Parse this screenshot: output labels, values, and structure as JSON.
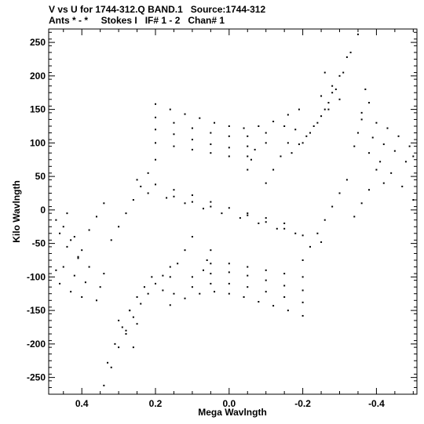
{
  "header": {
    "line1": "V vs U for 1744-312.Q BAND.1   Source:1744-312",
    "line2": "Ants * - *     Stokes I   IF# 1 - 2   Chan# 1"
  },
  "chart_data": {
    "type": "scatter",
    "title": "V vs U for 1744-312.Q BAND.1   Source:1744-312",
    "subtitle": "Ants * - *     Stokes I   IF# 1 - 2   Chan# 1",
    "xlabel": "Mega Wavlngth",
    "ylabel": "Kilo Wavlngth",
    "xlim": [
      0.49,
      -0.51
    ],
    "ylim": [
      -275,
      270
    ],
    "x_reversed": true,
    "xticks": [
      0.4,
      0.2,
      0.0,
      -0.2,
      -0.4
    ],
    "xtick_labels": [
      "0.4",
      "0.2",
      "0.0",
      "-0.2",
      "-0.4"
    ],
    "yticks": [
      250,
      200,
      150,
      100,
      50,
      0,
      -50,
      -100,
      -150,
      -200,
      -250
    ],
    "ytick_labels": [
      "250",
      "200",
      "150",
      "100",
      "50",
      "0",
      "-50",
      "-100",
      "-150",
      "-200",
      "-250"
    ],
    "grid": false,
    "marker_color": "#000000",
    "series": [
      {
        "points": [
          [
            -0.35,
            262
          ],
          [
            -0.33,
            235
          ],
          [
            -0.31,
            205
          ],
          [
            -0.29,
            180
          ],
          [
            -0.27,
            160
          ],
          [
            -0.25,
            140
          ],
          [
            -0.23,
            125
          ],
          [
            -0.21,
            110
          ],
          [
            -0.19,
            98
          ],
          [
            -0.17,
            85
          ],
          [
            -0.32,
            228
          ],
          [
            -0.3,
            200
          ],
          [
            -0.28,
            175
          ],
          [
            -0.26,
            150
          ],
          [
            -0.24,
            130
          ],
          [
            -0.22,
            115
          ],
          [
            -0.2,
            100
          ],
          [
            0.34,
            -262
          ],
          [
            0.32,
            -235
          ],
          [
            0.3,
            -205
          ],
          [
            0.28,
            -180
          ],
          [
            0.26,
            -160
          ],
          [
            0.24,
            -140
          ],
          [
            0.22,
            -125
          ],
          [
            0.2,
            -110
          ],
          [
            0.18,
            -98
          ],
          [
            0.16,
            -85
          ],
          [
            0.33,
            -228
          ],
          [
            0.31,
            -200
          ],
          [
            0.29,
            -175
          ],
          [
            0.27,
            -150
          ],
          [
            0.25,
            -130
          ],
          [
            0.23,
            -115
          ],
          [
            0.21,
            -100
          ],
          [
            0.2,
            158
          ],
          [
            0.16,
            150
          ],
          [
            0.12,
            143
          ],
          [
            0.08,
            137
          ],
          [
            0.04,
            130
          ],
          [
            0.0,
            125
          ],
          [
            -0.04,
            122
          ],
          [
            -0.08,
            125
          ],
          [
            -0.12,
            132
          ],
          [
            -0.16,
            142
          ],
          [
            -0.19,
            150
          ],
          [
            0.2,
            138
          ],
          [
            0.15,
            130
          ],
          [
            0.1,
            122
          ],
          [
            0.05,
            115
          ],
          [
            0.0,
            110
          ],
          [
            -0.05,
            110
          ],
          [
            -0.1,
            115
          ],
          [
            -0.15,
            125
          ],
          [
            0.2,
            120
          ],
          [
            0.15,
            113
          ],
          [
            0.1,
            105
          ],
          [
            0.05,
            98
          ],
          [
            0.0,
            93
          ],
          [
            -0.05,
            95
          ],
          [
            -0.1,
            100
          ],
          [
            0.2,
            100
          ],
          [
            0.15,
            95
          ],
          [
            0.1,
            90
          ],
          [
            0.05,
            85
          ],
          [
            0.0,
            80
          ],
          [
            -0.05,
            80
          ],
          [
            -0.2,
            -158
          ],
          [
            -0.16,
            -150
          ],
          [
            -0.12,
            -143
          ],
          [
            -0.08,
            -137
          ],
          [
            -0.04,
            -130
          ],
          [
            0.0,
            -125
          ],
          [
            0.04,
            -122
          ],
          [
            0.08,
            -125
          ],
          [
            0.12,
            -132
          ],
          [
            0.16,
            -142
          ],
          [
            -0.2,
            -138
          ],
          [
            -0.15,
            -130
          ],
          [
            -0.1,
            -122
          ],
          [
            -0.05,
            -115
          ],
          [
            0.0,
            -110
          ],
          [
            0.05,
            -110
          ],
          [
            0.1,
            -115
          ],
          [
            0.15,
            -125
          ],
          [
            -0.2,
            -120
          ],
          [
            -0.15,
            -113
          ],
          [
            -0.1,
            -105
          ],
          [
            -0.05,
            -98
          ],
          [
            0.0,
            -93
          ],
          [
            0.05,
            -95
          ],
          [
            0.1,
            -100
          ],
          [
            -0.2,
            -100
          ],
          [
            -0.15,
            -95
          ],
          [
            -0.1,
            -90
          ],
          [
            -0.05,
            -85
          ],
          [
            0.0,
            -80
          ],
          [
            0.05,
            -80
          ],
          [
            -0.36,
            135
          ],
          [
            -0.4,
            130
          ],
          [
            -0.43,
            122
          ],
          [
            -0.46,
            110
          ],
          [
            -0.49,
            95
          ],
          [
            -0.5,
            80
          ],
          [
            -0.35,
            115
          ],
          [
            -0.39,
            108
          ],
          [
            -0.42,
            98
          ],
          [
            -0.45,
            88
          ],
          [
            -0.48,
            72
          ],
          [
            -0.34,
            95
          ],
          [
            -0.38,
            85
          ],
          [
            -0.41,
            72
          ],
          [
            -0.44,
            55
          ],
          [
            -0.47,
            35
          ],
          [
            -0.5,
            15
          ],
          [
            0.36,
            -135
          ],
          [
            0.4,
            -130
          ],
          [
            0.43,
            -122
          ],
          [
            0.46,
            -110
          ],
          [
            0.47,
            -90
          ],
          [
            0.35,
            -115
          ],
          [
            0.39,
            -108
          ],
          [
            0.42,
            -98
          ],
          [
            0.45,
            -85
          ],
          [
            0.34,
            -95
          ],
          [
            0.38,
            -85
          ],
          [
            0.41,
            -72
          ],
          [
            0.44,
            -55
          ],
          [
            0.46,
            -35
          ],
          [
            0.47,
            -15
          ],
          [
            0.25,
            45
          ],
          [
            0.2,
            38
          ],
          [
            0.15,
            30
          ],
          [
            0.1,
            22
          ],
          [
            0.05,
            12
          ],
          [
            0.0,
            3
          ],
          [
            -0.05,
            -8
          ],
          [
            -0.1,
            -18
          ],
          [
            -0.15,
            -28
          ],
          [
            -0.2,
            -38
          ],
          [
            -0.25,
            -48
          ],
          [
            0.22,
            25
          ],
          [
            0.17,
            18
          ],
          [
            0.12,
            10
          ],
          [
            0.07,
            2
          ],
          [
            0.02,
            -5
          ],
          [
            -0.03,
            -12
          ],
          [
            -0.08,
            -20
          ],
          [
            -0.13,
            -28
          ],
          [
            -0.18,
            -35
          ],
          [
            0.15,
            20
          ],
          [
            0.1,
            12
          ],
          [
            0.05,
            5
          ],
          [
            -0.05,
            -5
          ],
          [
            -0.1,
            -12
          ],
          [
            -0.15,
            -20
          ],
          [
            0.2,
            75
          ],
          [
            0.22,
            55
          ],
          [
            0.24,
            35
          ],
          [
            0.26,
            15
          ],
          [
            0.28,
            -5
          ],
          [
            0.3,
            -25
          ],
          [
            0.32,
            -45
          ],
          [
            -0.2,
            -75
          ],
          [
            -0.22,
            -55
          ],
          [
            -0.24,
            -35
          ],
          [
            -0.26,
            -15
          ],
          [
            -0.28,
            5
          ],
          [
            -0.3,
            25
          ],
          [
            -0.32,
            45
          ],
          [
            0.1,
            -40
          ],
          [
            0.12,
            -60
          ],
          [
            0.14,
            -80
          ],
          [
            0.16,
            -100
          ],
          [
            0.18,
            -120
          ],
          [
            -0.1,
            40
          ],
          [
            -0.12,
            60
          ],
          [
            -0.14,
            80
          ],
          [
            -0.16,
            100
          ],
          [
            -0.18,
            120
          ],
          [
            0.05,
            -60
          ],
          [
            0.06,
            -75
          ],
          [
            0.07,
            -90
          ],
          [
            -0.05,
            60
          ],
          [
            -0.06,
            75
          ],
          [
            -0.07,
            90
          ],
          [
            -0.26,
            205
          ],
          [
            -0.28,
            185
          ],
          [
            -0.3,
            165
          ],
          [
            -0.25,
            170
          ],
          [
            -0.27,
            150
          ],
          [
            0.26,
            -205
          ],
          [
            0.28,
            -185
          ],
          [
            0.3,
            -165
          ],
          [
            0.25,
            -170
          ],
          [
            0.27,
            -150
          ],
          [
            -0.37,
            180
          ],
          [
            -0.38,
            160
          ],
          [
            -0.36,
            145
          ],
          [
            -0.4,
            60
          ],
          [
            -0.42,
            40
          ],
          [
            -0.38,
            30
          ],
          [
            -0.36,
            10
          ],
          [
            -0.34,
            -10
          ],
          [
            0.4,
            -60
          ],
          [
            0.42,
            -40
          ],
          [
            0.38,
            -30
          ],
          [
            0.36,
            -10
          ],
          [
            0.34,
            10
          ],
          [
            0.44,
            -5
          ],
          [
            0.45,
            -25
          ],
          [
            0.43,
            -45
          ],
          [
            0.41,
            -70
          ]
        ]
      }
    ]
  }
}
